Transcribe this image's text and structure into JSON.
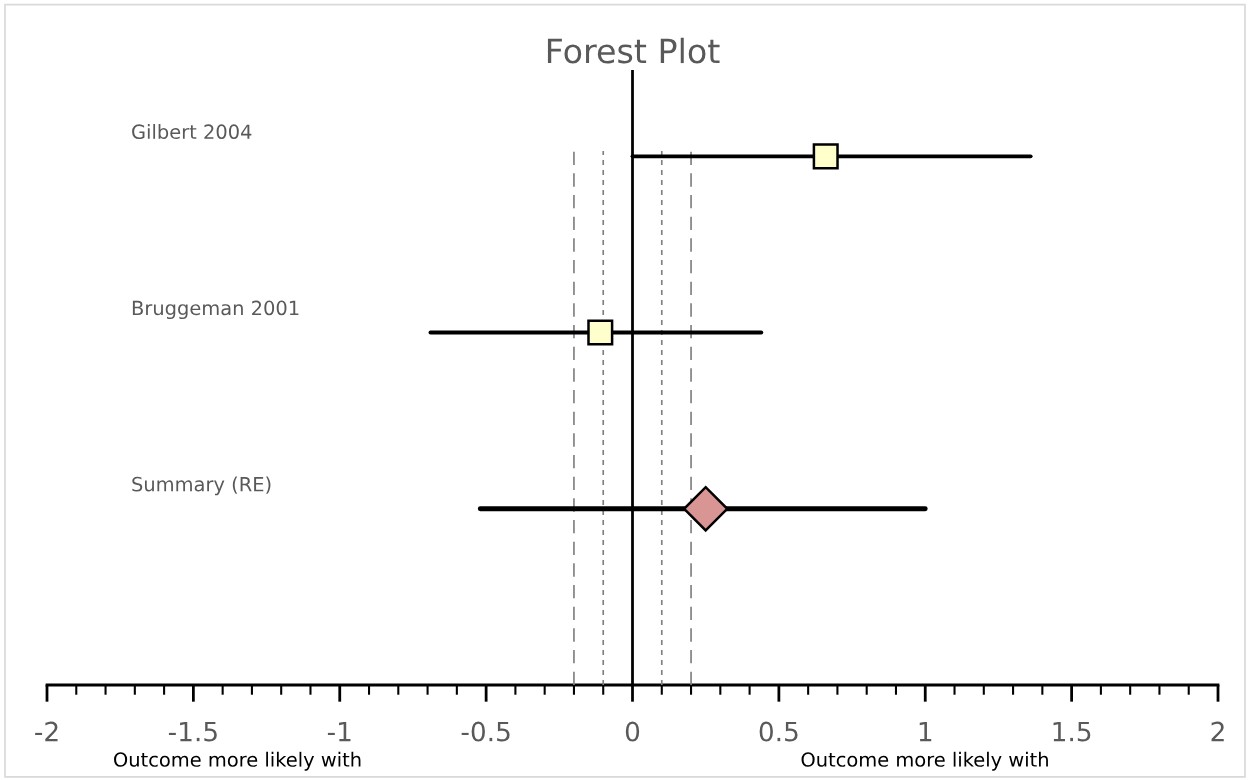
{
  "chart_data": {
    "type": "scatter",
    "title": "Forest Plot",
    "orientation": "horizontal",
    "categories": [
      "Gilbert 2004",
      "Bruggeman 2001",
      "Summary (RE)"
    ],
    "series": [
      {
        "color": "#ffffcc",
        "marker": "square",
        "values": [
          0.66,
          -0.11,
          null
        ],
        "errors": [
          [
            0.0,
            1.36
          ],
          [
            -0.69,
            0.44
          ],
          null
        ]
      },
      {
        "color": "#d99594",
        "marker": "diamond",
        "values": [
          null,
          null,
          0.25
        ],
        "errors": [
          null,
          null,
          [
            -0.52,
            1.0
          ]
        ]
      }
    ],
    "xlim": [
      -2,
      2
    ],
    "xticks": [
      -2,
      {
        "value": -1.9,
        "label": null
      },
      {
        "value": -1.8,
        "label": null
      },
      {
        "value": -1.7,
        "label": null
      },
      {
        "value": -1.6,
        "label": null
      },
      -1.5,
      {
        "value": -1.4,
        "label": null
      },
      {
        "value": -1.3,
        "label": null
      },
      {
        "value": -1.2,
        "label": null
      },
      {
        "value": -1.1,
        "label": null
      },
      -1,
      {
        "value": -0.9,
        "label": null
      },
      {
        "value": -0.8,
        "label": null
      },
      {
        "value": -0.7,
        "label": null
      },
      {
        "value": -0.6,
        "label": null
      },
      -0.5,
      {
        "value": -0.4,
        "label": null
      },
      {
        "value": -0.3,
        "label": null
      },
      {
        "value": -0.2,
        "label": null
      },
      {
        "value": -0.1,
        "label": null
      },
      0,
      {
        "value": 0.1,
        "label": null
      },
      {
        "value": 0.2,
        "label": null
      },
      {
        "value": 0.3,
        "label": null
      },
      {
        "value": 0.4,
        "label": null
      },
      0.5,
      {
        "value": 0.6,
        "label": null
      },
      {
        "value": 0.7,
        "label": null
      },
      {
        "value": 0.8,
        "label": null
      },
      {
        "value": 0.9,
        "label": null
      },
      1,
      {
        "value": 1.1,
        "label": null
      },
      {
        "value": 1.2,
        "label": null
      },
      {
        "value": 1.3,
        "label": null
      },
      {
        "value": 1.4,
        "label": null
      },
      1.5,
      {
        "value": 1.6,
        "label": null
      },
      {
        "value": 1.7,
        "label": null
      },
      {
        "value": 1.8,
        "label": null
      },
      {
        "value": 1.9,
        "label": null
      },
      2
    ],
    "ref_lines": [
      {
        "axis": "x",
        "value": 0,
        "color": "#000000",
        "line_style": "solid"
      },
      {
        "axis": "x",
        "value": -0.1,
        "color": "#808080",
        "line_style": "dotted"
      },
      {
        "axis": "x",
        "value": 0.1,
        "color": "#808080",
        "line_style": "dotted"
      },
      {
        "axis": "x",
        "value": -0.2,
        "color": "#808080",
        "line_style": "dashed"
      },
      {
        "axis": "x",
        "value": 0.2,
        "color": "#808080",
        "line_style": "dashed"
      }
    ],
    "annotations": [
      "Outcome more likely with",
      "Outcome more likely with"
    ],
    "grid": false,
    "legend": false
  }
}
